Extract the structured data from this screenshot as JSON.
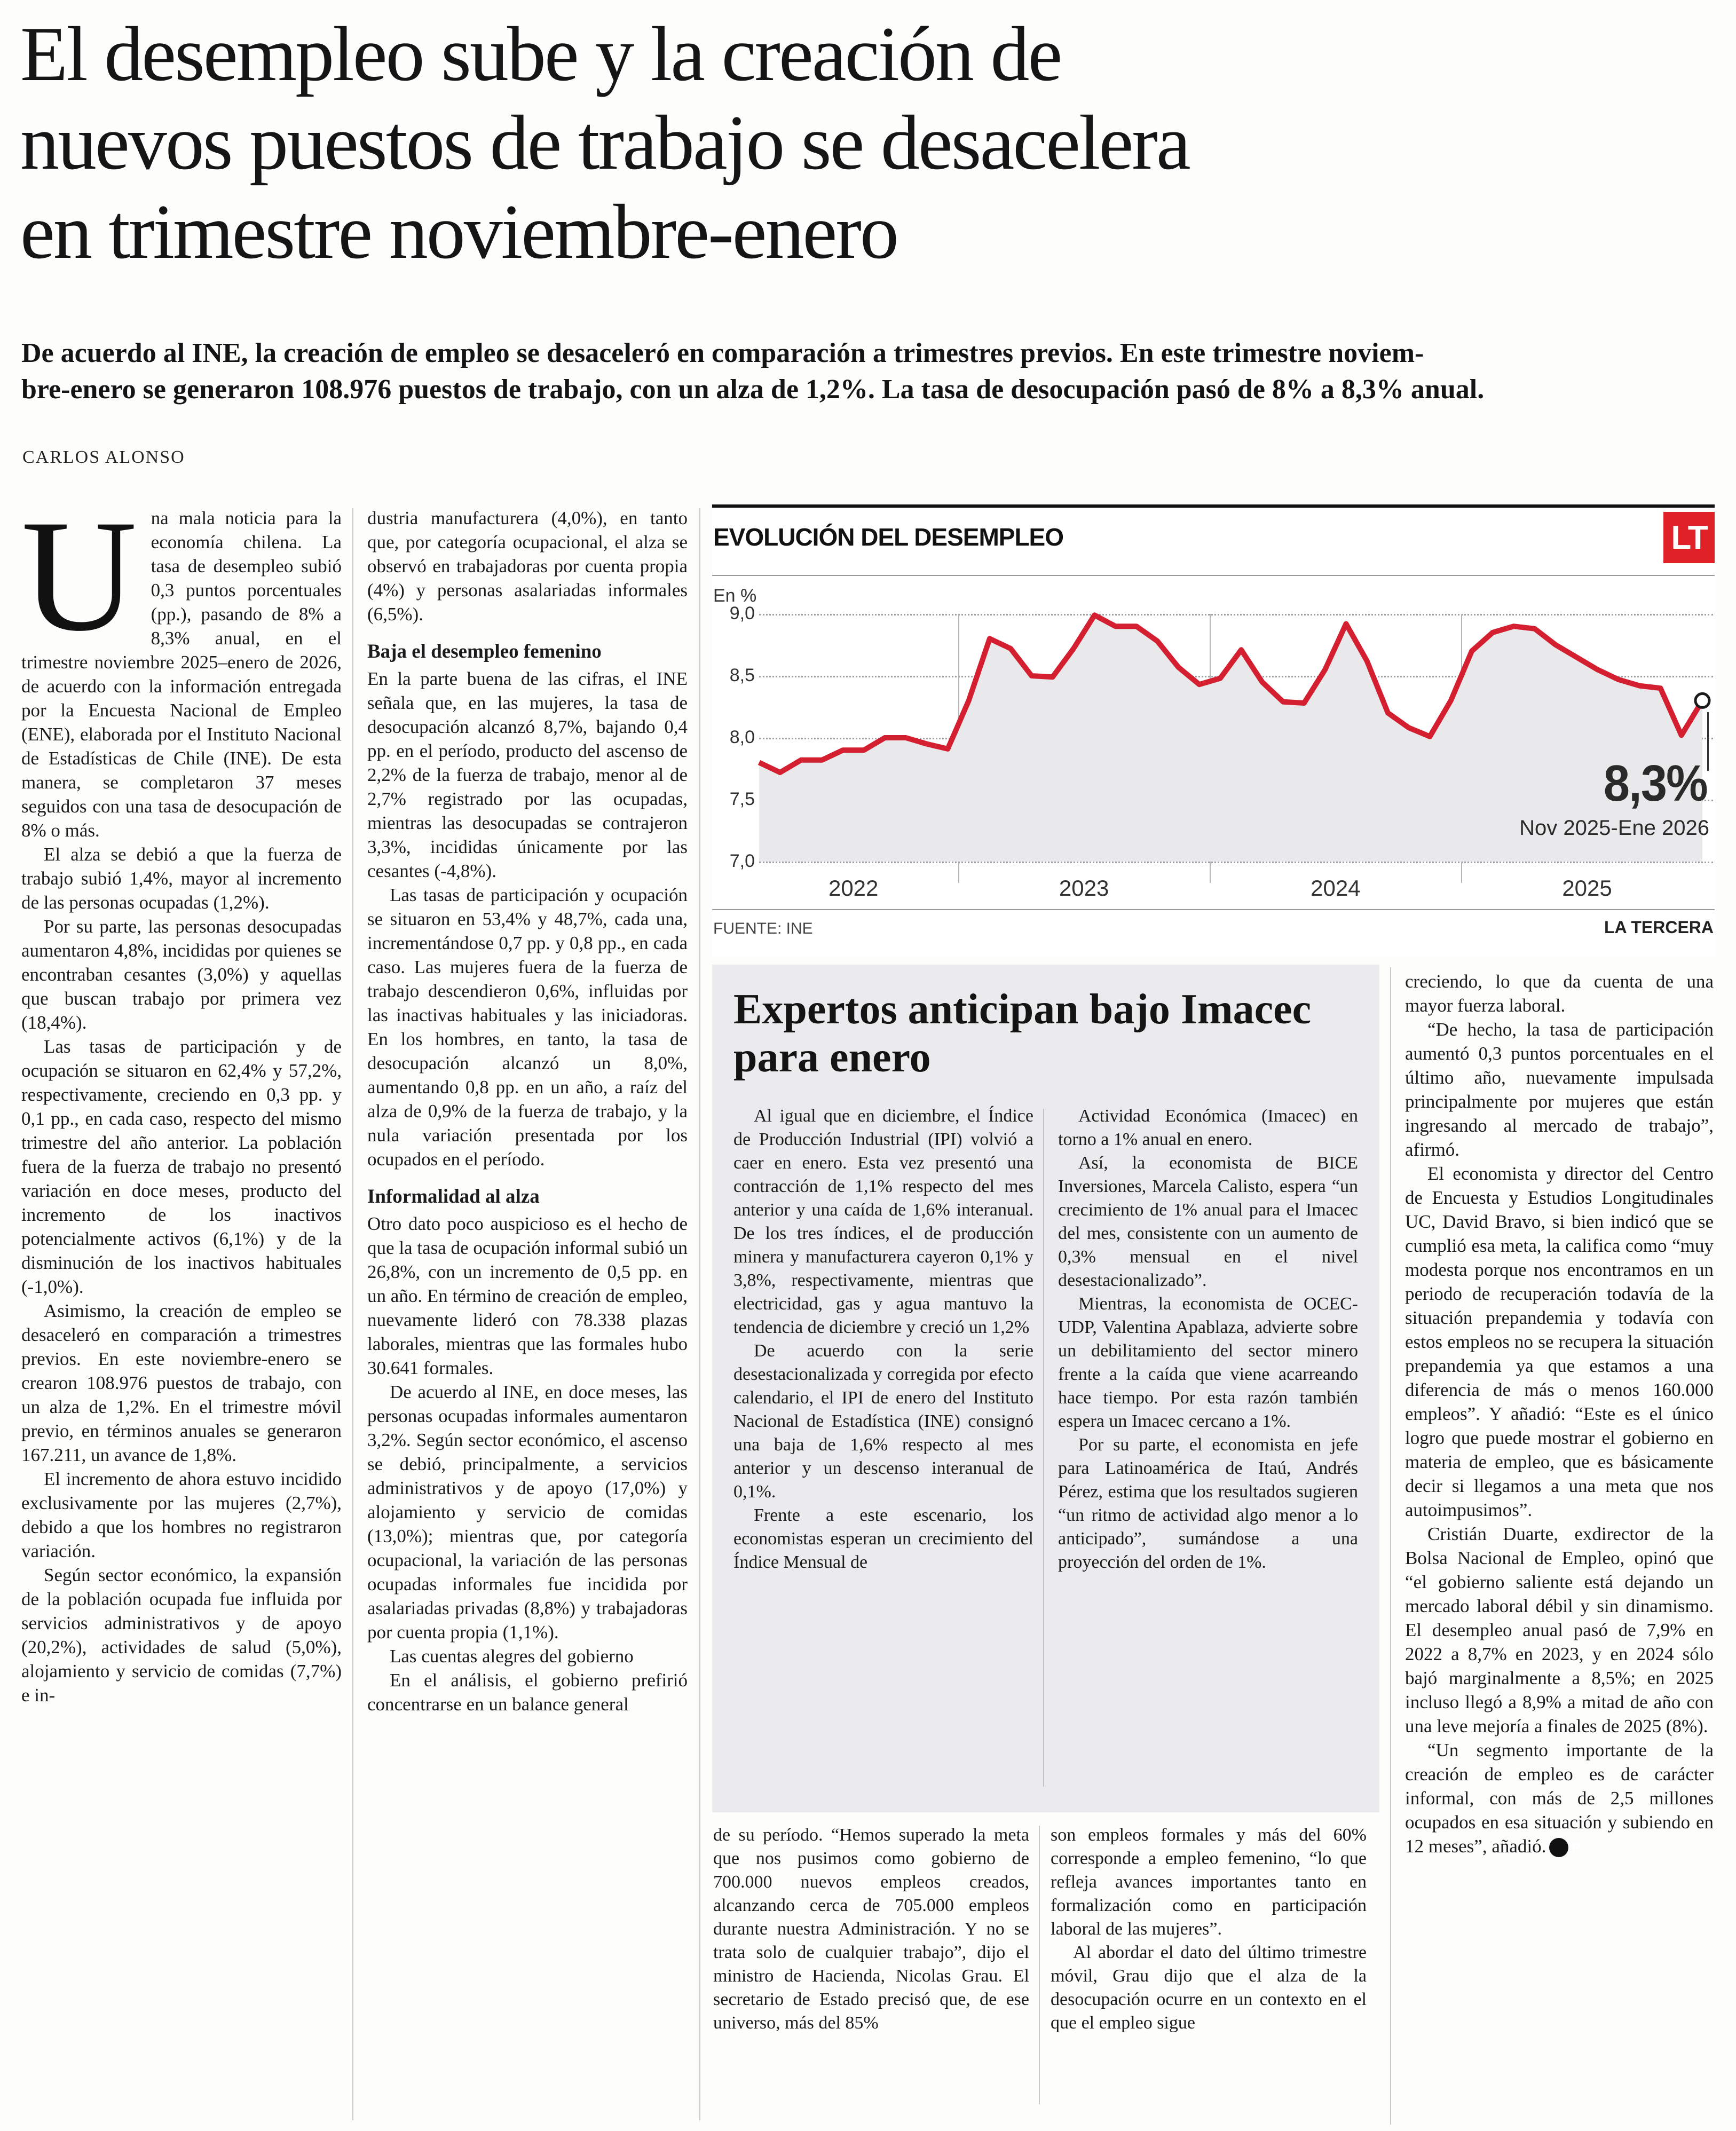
{
  "headline_lines": "El desempleo sube y la creación de\nnuevos puestos de trabajo se desacelera\nen trimestre noviembre-enero",
  "deck_lines": "De acuerdo al INE, la creación de empleo se desaceleró en comparación a trimestres previos. En este trimestre noviem-\nbre-enero se generaron 108.976 puestos de trabajo, con un alza de 1,2%. La tasa de desocupación pasó de 8% a 8,3% anual.",
  "byline": "CARLOS ALONSO",
  "logo": {
    "text": "LT",
    "color": "#e02128"
  },
  "end_mark": "P",
  "article": {
    "col1": [
      {
        "type": "p",
        "noindent": true,
        "drop_cap": "U",
        "text": "na mala noticia para la economía chilena. La tasa de desempleo subió 0,3 puntos porcentuales (pp.), pasando de 8% a 8,3% anual, en el trimestre noviembre 2025–enero de 2026, de acuerdo con la información entregada por la Encuesta Nacional de Empleo (ENE), elaborada por el Instituto Nacional de Estadísticas de Chile (INE). De esta manera, se completaron 37 meses seguidos con una tasa de desocupación de 8% o más."
      },
      {
        "type": "p",
        "text": "El alza se debió a que la fuerza de trabajo subió 1,4%, mayor al incremento de las personas ocupadas (1,2%)."
      },
      {
        "type": "p",
        "text": "Por su parte, las personas desocupadas aumentaron 4,8%, incididas por quienes se encontraban cesantes (3,0%) y aquellas que buscan trabajo por primera vez (18,4%)."
      },
      {
        "type": "p",
        "text": "Las tasas de participación y de ocupación se situaron en 62,4% y 57,2%, respectivamente, creciendo en 0,3 pp. y 0,1 pp., en cada caso, respecto del mismo trimestre del año anterior. La población fuera de la fuerza de trabajo no presentó variación en doce meses, producto del incremento de los inactivos potencialmente activos (6,1%) y de la disminución de los inactivos habituales (-1,0%)."
      },
      {
        "type": "p",
        "text": "Asimismo, la creación de empleo se desaceleró en comparación a trimestres previos. En este noviembre-enero se crearon 108.976 puestos de trabajo, con un alza de 1,2%. En el trimestre móvil previo, en términos anuales se generaron 167.211, un avance de 1,8%."
      },
      {
        "type": "p",
        "text": "El incremento de ahora estuvo incidido exclusivamente por las mujeres (2,7%), debido a que los hombres no registraron variación."
      },
      {
        "type": "p",
        "text": "Según sector económico, la expansión de la población ocupada fue influida por servicios administrativos y de apoyo (20,2%), actividades de salud (5,0%), alojamiento y servicio de comidas (7,7%) e in-"
      }
    ],
    "col2": [
      {
        "type": "p",
        "noindent": true,
        "text": "dustria manufacturera (4,0%), en tanto que, por categoría ocupacional, el alza se observó en trabajadoras por cuenta propia (4%) y personas asalariadas informales (6,5%)."
      },
      {
        "type": "h",
        "text": "Baja el desempleo femenino"
      },
      {
        "type": "p",
        "noindent": true,
        "text": "En la parte buena de las cifras, el INE señala que, en las mujeres, la tasa de desocupación alcanzó 8,7%, bajando 0,4 pp. en el período, producto del ascenso de 2,2% de la fuerza de trabajo, menor al de 2,7% registrado por las ocupadas, mientras las desocupadas se contrajeron 3,3%, incididas únicamente por las cesantes (-4,8%)."
      },
      {
        "type": "p",
        "text": "Las tasas de participación y ocupación se situaron en 53,4% y 48,7%, cada una, incrementándose 0,7 pp. y 0,8 pp., en cada caso. Las mujeres fuera de la fuerza de trabajo descendieron 0,6%, influidas por las inactivas habituales y las iniciadoras. En los hombres, en tanto, la tasa de desocupación alcanzó un 8,0%, aumentando 0,8 pp. en un año, a raíz del alza de 0,9% de la fuerza de trabajo, y la nula variación presentada por los ocupados en el período."
      },
      {
        "type": "h",
        "text": "Informalidad al alza"
      },
      {
        "type": "p",
        "noindent": true,
        "text": "Otro dato poco auspicioso es el hecho de que la tasa de ocupación informal subió un 26,8%, con un incremento de 0,5 pp. en un año. En término de creación de empleo, nuevamente lideró con 78.338 plazas laborales, mientras que las formales hubo 30.641 formales."
      },
      {
        "type": "p",
        "text": "De acuerdo al INE, en doce meses, las personas ocupadas informales aumentaron 3,2%. Según sector económico, el ascenso se debió, principalmente, a servicios administrativos y de apoyo (17,0%) y alojamiento y servicio de comidas (13,0%); mientras que, por categoría ocupacional, la variación de las personas ocupadas informales fue incidida por asalariadas privadas (8,8%) y trabajadoras por cuenta propia (1,1%)."
      },
      {
        "type": "p",
        "text": "Las cuentas alegres del gobierno"
      },
      {
        "type": "p",
        "text": "En el análisis, el gobierno prefirió concentrarse en un balance general"
      }
    ],
    "bottom_left": [
      {
        "type": "p",
        "noindent": true,
        "text": "de su período. “Hemos superado la meta que nos pusimos como gobierno de 700.000 nuevos empleos creados, alcanzando cerca de 705.000 empleos durante nuestra Administración. Y no se trata solo de cualquier trabajo”, dijo el ministro de Hacienda, Nicolas Grau. El secretario de Estado precisó que, de ese universo, más del 85%"
      }
    ],
    "bottom_right": [
      {
        "type": "p",
        "noindent": true,
        "text": "son empleos formales y más del 60% corresponde a empleo femenino, “lo que refleja avances importantes tanto en formalización como en participación laboral de las mujeres”."
      },
      {
        "type": "p",
        "text": "Al abordar el dato del último trimestre móvil, Grau dijo que el alza de la desocupación ocurre en un contexto en el que el empleo sigue"
      }
    ],
    "right_col": [
      {
        "type": "p",
        "noindent": true,
        "text": "creciendo, lo que da cuenta de una mayor fuerza laboral."
      },
      {
        "type": "p",
        "text": "“De hecho, la tasa de participación aumentó 0,3 puntos porcentuales en el último año, nuevamente impulsada principalmente por mujeres que están ingresando al mercado de trabajo”, afirmó."
      },
      {
        "type": "p",
        "text": "El economista y director del Centro de Encuesta y Estudios Longitudinales UC, David Bravo, si bien indicó que se cumplió esa meta, la califica como “muy modesta porque nos encontramos en un periodo de recuperación todavía de la situación prepandemia y todavía con estos empleos no se recupera la situación prepandemia ya que estamos a una diferencia de más o menos 160.000 empleos”. Y añadió: “Este es el único logro que puede mostrar el gobierno en materia de empleo, que es básicamente decir si llegamos a una meta que nos autoimpusimos”."
      },
      {
        "type": "p",
        "text": "Cristián Duarte, exdirector de la Bolsa Nacional de Empleo, opinó que “el gobierno saliente está dejando un mercado laboral débil y sin dinamismo. El desempleo anual pasó de 7,9% en 2022 a 8,7% en 2023, y en 2024 sólo bajó marginalmente a 8,5%; en 2025 incluso llegó a 8,9% a mitad de año con una leve mejoría a finales de 2025 (8%)."
      },
      {
        "type": "p",
        "endmark": true,
        "text": "“Un segmento importante de la creación de empleo es de carácter informal, con más de 2,5 millones ocupados en esa situación y subiendo en 12 meses”, añadió."
      }
    ]
  },
  "feature": {
    "title": "Expertos anticipan bajo Imacec para enero",
    "col_left": [
      {
        "type": "p",
        "noindent": true,
        "text": "Al igual que en diciembre, el Índice de Producción Industrial (IPI) volvió a caer en enero. Esta vez presentó una contracción de 1,1% respecto del mes anterior y una caída de 1,6% interanual. De los tres índices, el de producción minera y manufacturera cayeron 0,1% y 3,8%, respectivamente, mientras que electricidad, gas y agua mantuvo la tendencia de diciembre y creció un 1,2%"
      },
      {
        "type": "p",
        "text": "De acuerdo con la serie desestacionalizada y corregida por efecto calendario, el IPI de enero del Instituto Nacional de Estadística (INE) consignó una baja de 1,6% respecto al mes anterior y un descenso interanual de 0,1%."
      },
      {
        "type": "p",
        "text": "Frente a este escenario, los economistas esperan un crecimiento del Índice Mensual de"
      }
    ],
    "col_right": [
      {
        "type": "p",
        "noindent": true,
        "text": "Actividad Económica (Imacec) en torno a 1% anual en enero."
      },
      {
        "type": "p",
        "text": "Así, la economista de BICE Inversiones, Marcela Calisto, espera “un crecimiento de 1% anual para el Imacec del mes, consistente con un aumento de 0,3% mensual en el nivel desestacionalizado”."
      },
      {
        "type": "p",
        "text": "Mientras, la economista de OCEC-UDP, Valentina Apablaza, advierte sobre un debilitamiento del sector minero frente a la caída que viene acarreando hace tiempo. Por esta razón también espera un Imacec cercano a 1%."
      },
      {
        "type": "p",
        "text": "Por su parte, el economista en jefe para Latinoamérica de Itaú, Andrés Pérez, estima que los resultados sugieren “un ritmo de actividad algo menor a lo anticipado”, sumándose a una proyección del orden de 1%."
      }
    ]
  },
  "chart_data": {
    "type": "line",
    "title": "EVOLUCIÓN DEL DESEMPLEO",
    "unit_label": "En %",
    "source": "FUENTE: INE",
    "credit": "LA TERCERA",
    "ylim": [
      7.0,
      9.0
    ],
    "yticks": [
      {
        "value": 9.0,
        "label": "9,0"
      },
      {
        "value": 8.5,
        "label": "8,5"
      },
      {
        "value": 8.0,
        "label": "8,0"
      },
      {
        "value": 7.5,
        "label": "7,5"
      },
      {
        "value": 7.0,
        "label": "7,0"
      }
    ],
    "x_period": "trimestres móviles mar 2022 - ene 2026",
    "year_labels": [
      "2022",
      "2023",
      "2024",
      "2025"
    ],
    "year_divider_after_index": [
      9,
      21,
      33
    ],
    "year_label_center_index": [
      4.5,
      15.5,
      27.5,
      39.5
    ],
    "series": [
      {
        "name": "Tasa de desocupación (%)",
        "values": [
          7.8,
          7.72,
          7.82,
          7.82,
          7.9,
          7.9,
          8.0,
          8.0,
          7.95,
          7.91,
          8.3,
          8.8,
          8.72,
          8.5,
          8.49,
          8.72,
          8.99,
          8.9,
          8.9,
          8.78,
          8.57,
          8.43,
          8.48,
          8.71,
          8.45,
          8.29,
          8.28,
          8.55,
          8.92,
          8.62,
          8.2,
          8.08,
          8.01,
          8.3,
          8.7,
          8.85,
          8.9,
          8.88,
          8.75,
          8.65,
          8.55,
          8.47,
          8.42,
          8.4,
          8.02,
          8.3
        ]
      }
    ],
    "annotation": {
      "value_label": "8,3%",
      "period_label": "Nov 2025-Ene 2026"
    },
    "line_color": "#d41f30",
    "fill_color": "#e9e8ea",
    "grid": "dotted-horizontal"
  }
}
